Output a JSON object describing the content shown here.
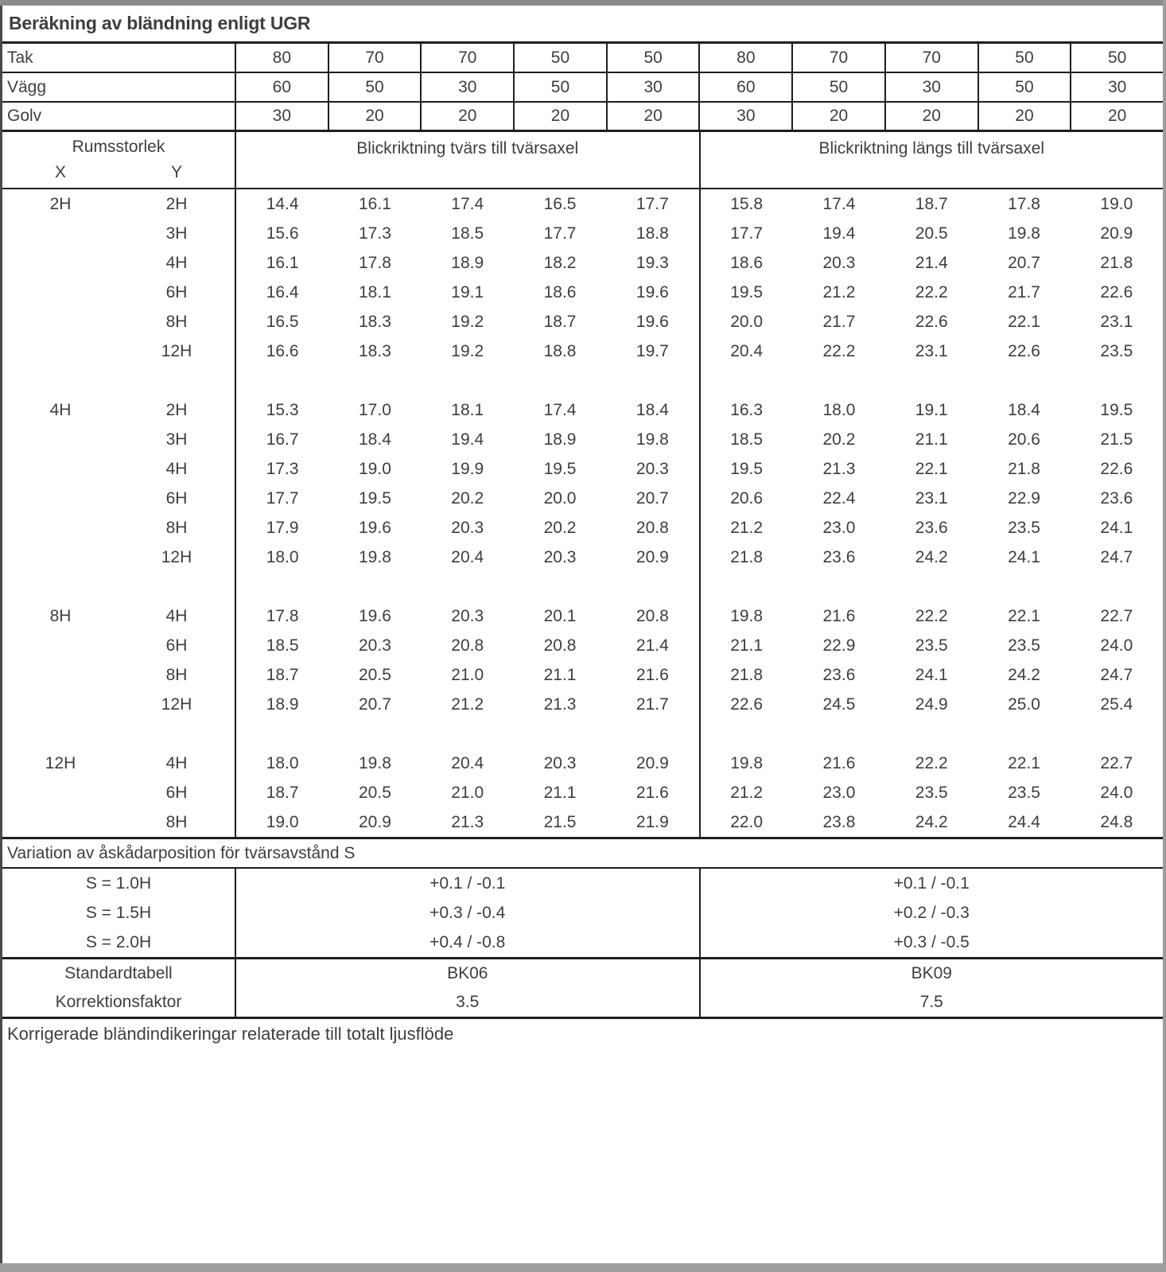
{
  "title": "Beräkning av bländning enligt UGR",
  "header": {
    "room_size": "Rumsstorlek",
    "x": "X",
    "y": "Y",
    "section_left": "Blickriktning tvärs till tvärsaxel",
    "section_right": "Blickriktning längs till tvärsaxel"
  },
  "reflectance": {
    "rows": [
      {
        "label": "Tak",
        "values": [
          "80",
          "70",
          "70",
          "50",
          "50",
          "80",
          "70",
          "70",
          "50",
          "50"
        ]
      },
      {
        "label": "Vägg",
        "values": [
          "60",
          "50",
          "30",
          "50",
          "30",
          "60",
          "50",
          "30",
          "50",
          "30"
        ]
      },
      {
        "label": "Golv",
        "values": [
          "30",
          "20",
          "20",
          "20",
          "20",
          "30",
          "20",
          "20",
          "20",
          "20"
        ]
      }
    ]
  },
  "blocks": [
    {
      "x": "2H",
      "rows": [
        {
          "y": "2H",
          "left": [
            "14.4",
            "16.1",
            "17.4",
            "16.5",
            "17.7"
          ],
          "right": [
            "15.8",
            "17.4",
            "18.7",
            "17.8",
            "19.0"
          ]
        },
        {
          "y": "3H",
          "left": [
            "15.6",
            "17.3",
            "18.5",
            "17.7",
            "18.8"
          ],
          "right": [
            "17.7",
            "19.4",
            "20.5",
            "19.8",
            "20.9"
          ]
        },
        {
          "y": "4H",
          "left": [
            "16.1",
            "17.8",
            "18.9",
            "18.2",
            "19.3"
          ],
          "right": [
            "18.6",
            "20.3",
            "21.4",
            "20.7",
            "21.8"
          ]
        },
        {
          "y": "6H",
          "left": [
            "16.4",
            "18.1",
            "19.1",
            "18.6",
            "19.6"
          ],
          "right": [
            "19.5",
            "21.2",
            "22.2",
            "21.7",
            "22.6"
          ]
        },
        {
          "y": "8H",
          "left": [
            "16.5",
            "18.3",
            "19.2",
            "18.7",
            "19.6"
          ],
          "right": [
            "20.0",
            "21.7",
            "22.6",
            "22.1",
            "23.1"
          ]
        },
        {
          "y": "12H",
          "left": [
            "16.6",
            "18.3",
            "19.2",
            "18.8",
            "19.7"
          ],
          "right": [
            "20.4",
            "22.2",
            "23.1",
            "22.6",
            "23.5"
          ]
        }
      ]
    },
    {
      "x": "4H",
      "rows": [
        {
          "y": "2H",
          "left": [
            "15.3",
            "17.0",
            "18.1",
            "17.4",
            "18.4"
          ],
          "right": [
            "16.3",
            "18.0",
            "19.1",
            "18.4",
            "19.5"
          ]
        },
        {
          "y": "3H",
          "left": [
            "16.7",
            "18.4",
            "19.4",
            "18.9",
            "19.8"
          ],
          "right": [
            "18.5",
            "20.2",
            "21.1",
            "20.6",
            "21.5"
          ]
        },
        {
          "y": "4H",
          "left": [
            "17.3",
            "19.0",
            "19.9",
            "19.5",
            "20.3"
          ],
          "right": [
            "19.5",
            "21.3",
            "22.1",
            "21.8",
            "22.6"
          ]
        },
        {
          "y": "6H",
          "left": [
            "17.7",
            "19.5",
            "20.2",
            "20.0",
            "20.7"
          ],
          "right": [
            "20.6",
            "22.4",
            "23.1",
            "22.9",
            "23.6"
          ]
        },
        {
          "y": "8H",
          "left": [
            "17.9",
            "19.6",
            "20.3",
            "20.2",
            "20.8"
          ],
          "right": [
            "21.2",
            "23.0",
            "23.6",
            "23.5",
            "24.1"
          ]
        },
        {
          "y": "12H",
          "left": [
            "18.0",
            "19.8",
            "20.4",
            "20.3",
            "20.9"
          ],
          "right": [
            "21.8",
            "23.6",
            "24.2",
            "24.1",
            "24.7"
          ]
        }
      ]
    },
    {
      "x": "8H",
      "rows": [
        {
          "y": "4H",
          "left": [
            "17.8",
            "19.6",
            "20.3",
            "20.1",
            "20.8"
          ],
          "right": [
            "19.8",
            "21.6",
            "22.2",
            "22.1",
            "22.7"
          ]
        },
        {
          "y": "6H",
          "left": [
            "18.5",
            "20.3",
            "20.8",
            "20.8",
            "21.4"
          ],
          "right": [
            "21.1",
            "22.9",
            "23.5",
            "23.5",
            "24.0"
          ]
        },
        {
          "y": "8H",
          "left": [
            "18.7",
            "20.5",
            "21.0",
            "21.1",
            "21.6"
          ],
          "right": [
            "21.8",
            "23.6",
            "24.1",
            "24.2",
            "24.7"
          ]
        },
        {
          "y": "12H",
          "left": [
            "18.9",
            "20.7",
            "21.2",
            "21.3",
            "21.7"
          ],
          "right": [
            "22.6",
            "24.5",
            "24.9",
            "25.0",
            "25.4"
          ]
        }
      ]
    },
    {
      "x": "12H",
      "rows": [
        {
          "y": "4H",
          "left": [
            "18.0",
            "19.8",
            "20.4",
            "20.3",
            "20.9"
          ],
          "right": [
            "19.8",
            "21.6",
            "22.2",
            "22.1",
            "22.7"
          ]
        },
        {
          "y": "6H",
          "left": [
            "18.7",
            "20.5",
            "21.0",
            "21.1",
            "21.6"
          ],
          "right": [
            "21.2",
            "23.0",
            "23.5",
            "23.5",
            "24.0"
          ]
        },
        {
          "y": "8H",
          "left": [
            "19.0",
            "20.9",
            "21.3",
            "21.5",
            "21.9"
          ],
          "right": [
            "22.0",
            "23.8",
            "24.2",
            "24.4",
            "24.8"
          ]
        }
      ]
    }
  ],
  "variation": {
    "header": "Variation av åskådarposition för tvärsavstånd S",
    "rows": [
      {
        "label": "S = 1.0H",
        "left": "+0.1 / -0.1",
        "right": "+0.1 / -0.1"
      },
      {
        "label": "S = 1.5H",
        "left": "+0.3 / -0.4",
        "right": "+0.2 / -0.3"
      },
      {
        "label": "S = 2.0H",
        "left": "+0.4 / -0.8",
        "right": "+0.3 / -0.5"
      }
    ]
  },
  "summary": {
    "rows": [
      {
        "label": "Standardtabell",
        "left": "BK06",
        "right": "BK09"
      },
      {
        "label": "Korrektionsfaktor",
        "left": "3.5",
        "right": "7.5"
      }
    ]
  },
  "footer": "Korrigerade bländindikeringar relaterade till totalt ljusflöde"
}
